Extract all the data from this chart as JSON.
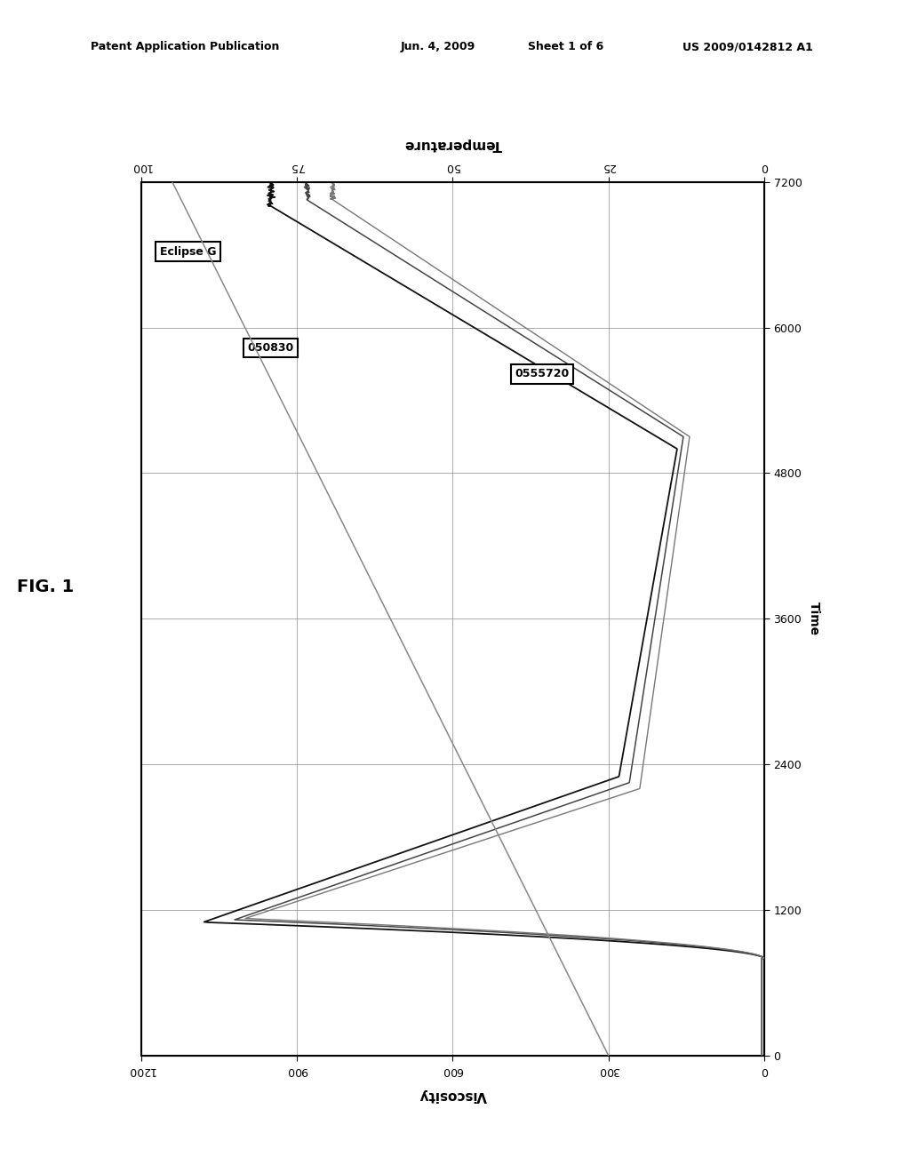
{
  "fig_label": "FIG. 1",
  "header_pub": "Patent Application Publication",
  "header_date": "Jun. 4, 2009",
  "header_sheet": "Sheet 1 of 6",
  "header_patent": "US 2009/0142812 A1",
  "xlabel_bottom": "Viscosity",
  "ylabel_right": "Time",
  "xlabel_top": "Temperature",
  "x_visc_ticks": [
    0,
    300,
    600,
    900,
    1200
  ],
  "x_temp_ticks": [
    0,
    25,
    50,
    75,
    100
  ],
  "y_time_ticks": [
    0,
    1200,
    2400,
    3600,
    4800,
    6000,
    7200
  ],
  "xlim_visc": [
    1200,
    0
  ],
  "ylim_time": [
    0,
    7200
  ],
  "xlim_temp": [
    100,
    0
  ],
  "legend_labels": [
    "Eclipse G",
    "050830",
    "0555720"
  ],
  "bg_color": "#ffffff",
  "grid_color": "#777777",
  "line_colors": [
    "#111111",
    "#444444",
    "#777777"
  ],
  "temp_line_color": "#888888"
}
